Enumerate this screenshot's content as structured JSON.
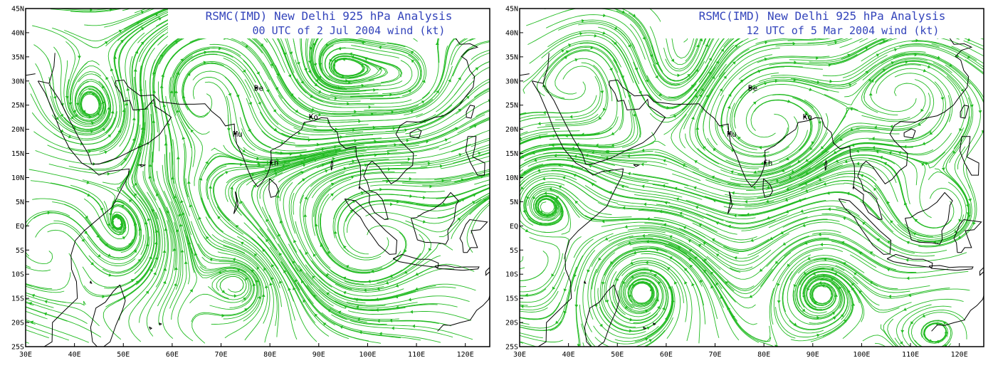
{
  "colors": {
    "streamline": "#22bb22",
    "coast": "#000000",
    "title": "#3344bb",
    "frame": "#000000"
  },
  "axes": {
    "lat_labels": [
      "45N",
      "40N",
      "35N",
      "30N",
      "25N",
      "20N",
      "15N",
      "10N",
      "5N",
      "EQ",
      "5S",
      "10S",
      "15S",
      "20S",
      "25S"
    ],
    "lon_labels": [
      "30E",
      "40E",
      "50E",
      "60E",
      "70E",
      "80E",
      "90E",
      "100E",
      "110E",
      "120E"
    ]
  },
  "stations": [
    {
      "code": "De",
      "lon": 77.2,
      "lat": 28.6
    },
    {
      "code": "Ko",
      "lon": 88.4,
      "lat": 22.6
    },
    {
      "code": "Mu",
      "lon": 72.9,
      "lat": 19.1
    },
    {
      "code": "Ch",
      "lon": 80.3,
      "lat": 13.1
    }
  ],
  "panels": [
    {
      "title_line1": "RSMC(IMD) New Delhi 925 hPa Analysis",
      "title_line2": "00 UTC of  2 Jul 2004 wind (kt)",
      "flow": {
        "vortices": [
          {
            "lon": 52,
            "lat": -2,
            "strength": 0.9
          },
          {
            "lon": 77,
            "lat": -9,
            "strength": 0.7
          },
          {
            "lon": 98,
            "lat": -2,
            "strength": -0.9
          },
          {
            "lon": 42,
            "lat": 21,
            "strength": 0.5
          },
          {
            "lon": 68,
            "lat": 30,
            "strength": -0.6
          },
          {
            "lon": 90,
            "lat": 30,
            "strength": 0.5
          },
          {
            "lon": 108,
            "lat": 26,
            "strength": 0.4
          }
        ],
        "background": [
          {
            "lat": -30,
            "u": -4,
            "v": 1
          },
          {
            "lat": -10,
            "u": -6,
            "v": 3
          },
          {
            "lat": 0,
            "u": 2,
            "v": 7
          },
          {
            "lat": 10,
            "u": 9,
            "v": 2
          },
          {
            "lat": 25,
            "u": 5,
            "v": -1
          },
          {
            "lat": 45,
            "u": 4,
            "v": 0
          }
        ]
      }
    },
    {
      "title_line1": "RSMC(IMD) New Delhi 925 hPa Analysis",
      "title_line2": "12 UTC of  5 Mar 2004 wind (kt)",
      "flow": {
        "vortices": [
          {
            "lon": 56,
            "lat": -12,
            "strength": 1.0
          },
          {
            "lon": 93,
            "lat": -11,
            "strength": 0.7
          },
          {
            "lon": 117,
            "lat": -19,
            "strength": 0.8
          },
          {
            "lon": 115,
            "lat": 0,
            "strength": -0.7
          },
          {
            "lon": 36,
            "lat": 8,
            "strength": 0.5
          },
          {
            "lon": 47,
            "lat": 33,
            "strength": -0.5
          },
          {
            "lon": 59,
            "lat": 31,
            "strength": 0.6
          },
          {
            "lon": 81,
            "lat": 20,
            "strength": -0.6
          },
          {
            "lon": 110,
            "lat": 30,
            "strength": -0.5
          }
        ],
        "background": [
          {
            "lat": -30,
            "u": -4,
            "v": 2
          },
          {
            "lat": -10,
            "u": -5,
            "v": 1
          },
          {
            "lat": 0,
            "u": -3,
            "v": 1
          },
          {
            "lat": 15,
            "u": -6,
            "v": -1
          },
          {
            "lat": 30,
            "u": 5,
            "v": -1
          },
          {
            "lat": 45,
            "u": 6,
            "v": 0
          }
        ]
      }
    }
  ]
}
